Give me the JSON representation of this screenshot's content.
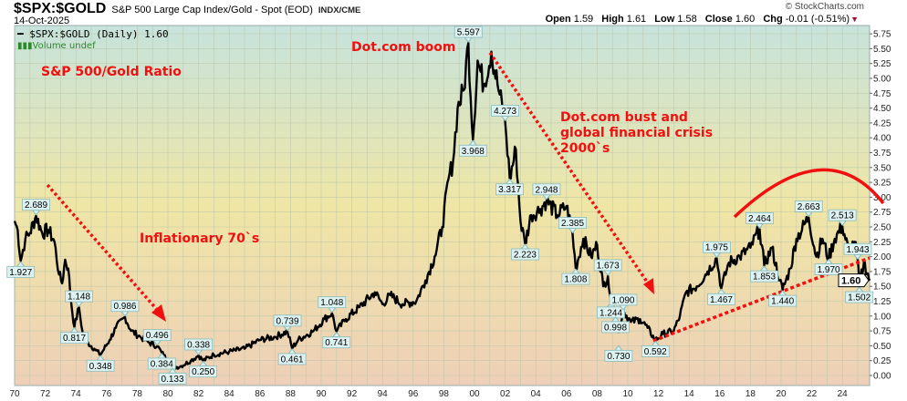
{
  "header": {
    "symbol": "$SPX:$GOLD",
    "description": "S&P 500 Large Cap Index/Gold - Spot (EOD)",
    "exchange": "INDX/CME",
    "date": "14-Oct-2025",
    "copyright": "© StockCharts.com",
    "open_label": "Open",
    "open": "1.59",
    "high_label": "High",
    "high": "1.61",
    "low_label": "Low",
    "low": "1.58",
    "close_label": "Close",
    "close": "1.60",
    "chg_label": "Chg",
    "chg": "-0.01 (-0.51%)",
    "chg_direction": "down"
  },
  "legend": {
    "series": "$SPX:$GOLD (Daily) 1.60",
    "volume": "Volume undef"
  },
  "colors": {
    "line": "#000000",
    "annotation": "#f01010",
    "label_box": "#dff2f2",
    "bg_top": "#c7e3dc",
    "bg_mid": "#efe6a6",
    "bg_bottom": "#eed0b8"
  },
  "chart_data": {
    "type": "line",
    "title": "",
    "xlabel": "",
    "ylabel": "",
    "xlim": [
      1970,
      2025.8
    ],
    "ylim": [
      -0.25,
      6.0
    ],
    "grid": true,
    "x_ticks": [
      "70",
      "72",
      "74",
      "76",
      "78",
      "80",
      "82",
      "84",
      "86",
      "88",
      "90",
      "92",
      "94",
      "96",
      "98",
      "00",
      "02",
      "04",
      "06",
      "08",
      "10",
      "12",
      "14",
      "16",
      "18",
      "20",
      "22",
      "24"
    ],
    "y_ticks": [
      "0.00",
      "0.25",
      "0.50",
      "0.75",
      "1.00",
      "1.25",
      "1.50",
      "1.75",
      "2.00",
      "2.25",
      "2.50",
      "2.75",
      "3.00",
      "3.25",
      "3.50",
      "3.75",
      "4.00",
      "4.25",
      "4.50",
      "4.75",
      "5.00",
      "5.25",
      "5.50",
      "5.75"
    ],
    "last_value": "1.60",
    "series": [
      {
        "points": [
          [
            1970,
            2.6
          ],
          [
            1970.2,
            2.45
          ],
          [
            1970.4,
            1.927
          ],
          [
            1970.7,
            2.3
          ],
          [
            1971,
            2.4
          ],
          [
            1971.4,
            2.689
          ],
          [
            1971.8,
            2.4
          ],
          [
            1972.2,
            2.45
          ],
          [
            1972.6,
            2.25
          ],
          [
            1972.9,
            1.7
          ],
          [
            1973.1,
            1.55
          ],
          [
            1973.3,
            1.95
          ],
          [
            1973.5,
            1.8
          ],
          [
            1973.7,
            1.2
          ],
          [
            1973.9,
            0.817
          ],
          [
            1974.2,
            1.148
          ],
          [
            1974.5,
            0.6
          ],
          [
            1974.8,
            0.55
          ],
          [
            1975.2,
            0.45
          ],
          [
            1975.6,
            0.348
          ],
          [
            1976.2,
            0.6
          ],
          [
            1976.6,
            0.8
          ],
          [
            1977.2,
            0.986
          ],
          [
            1977.6,
            0.75
          ],
          [
            1978.2,
            0.65
          ],
          [
            1978.8,
            0.55
          ],
          [
            1979.3,
            0.496
          ],
          [
            1979.6,
            0.384
          ],
          [
            1980,
            0.25
          ],
          [
            1980.3,
            0.133
          ],
          [
            1980.8,
            0.15
          ],
          [
            1981.5,
            0.25
          ],
          [
            1982,
            0.338
          ],
          [
            1982.3,
            0.25
          ],
          [
            1983,
            0.35
          ],
          [
            1984,
            0.4
          ],
          [
            1985,
            0.45
          ],
          [
            1986,
            0.6
          ],
          [
            1987,
            0.65
          ],
          [
            1987.8,
            0.739
          ],
          [
            1988.1,
            0.461
          ],
          [
            1988.5,
            0.6
          ],
          [
            1989.5,
            0.75
          ],
          [
            1990.2,
            0.95
          ],
          [
            1990.7,
            1.048
          ],
          [
            1991,
            0.741
          ],
          [
            1991.6,
            0.95
          ],
          [
            1992.5,
            1.15
          ],
          [
            1993.5,
            1.4
          ],
          [
            1994,
            1.2
          ],
          [
            1994.5,
            1.35
          ],
          [
            1995.3,
            1.2
          ],
          [
            1996.2,
            1.25
          ],
          [
            1996.8,
            1.6
          ],
          [
            1997.4,
            2.0
          ],
          [
            1997.9,
            2.5
          ],
          [
            1998.3,
            3.3
          ],
          [
            1998.6,
            3.6
          ],
          [
            1998.9,
            4.5
          ],
          [
            1999.3,
            4.8
          ],
          [
            1999.6,
            5.597
          ],
          [
            1999.9,
            3.968
          ],
          [
            2000.2,
            5.3
          ],
          [
            2000.6,
            4.9
          ],
          [
            2001.1,
            5.45
          ],
          [
            2001.5,
            4.9
          ],
          [
            2002,
            4.273
          ],
          [
            2002.3,
            3.317
          ],
          [
            2002.7,
            3.8
          ],
          [
            2003,
            2.6
          ],
          [
            2003.3,
            2.223
          ],
          [
            2003.7,
            2.7
          ],
          [
            2004.3,
            2.8
          ],
          [
            2004.7,
            2.948
          ],
          [
            2005.4,
            2.7
          ],
          [
            2006,
            2.85
          ],
          [
            2006.4,
            2.385
          ],
          [
            2006.6,
            1.808
          ],
          [
            2007.1,
            2.3
          ],
          [
            2007.6,
            2.0
          ],
          [
            2008,
            2.2
          ],
          [
            2008.4,
            1.5
          ],
          [
            2008.7,
            1.673
          ],
          [
            2008.9,
            1.244
          ],
          [
            2009.2,
            0.998
          ],
          [
            2009.4,
            0.73
          ],
          [
            2009.7,
            1.09
          ],
          [
            2010.2,
            0.9
          ],
          [
            2010.8,
            0.95
          ],
          [
            2011.3,
            0.8
          ],
          [
            2011.8,
            0.592
          ],
          [
            2012.3,
            0.7
          ],
          [
            2013,
            0.75
          ],
          [
            2013.4,
            1.0
          ],
          [
            2013.8,
            1.4
          ],
          [
            2014.5,
            1.5
          ],
          [
            2015.2,
            1.75
          ],
          [
            2015.8,
            1.975
          ],
          [
            2016.1,
            1.467
          ],
          [
            2016.6,
            1.9
          ],
          [
            2017.3,
            2.0
          ],
          [
            2018,
            2.15
          ],
          [
            2018.6,
            2.464
          ],
          [
            2018.9,
            1.853
          ],
          [
            2019.4,
            2.15
          ],
          [
            2019.9,
            1.6
          ],
          [
            2020.1,
            1.44
          ],
          [
            2020.6,
            1.8
          ],
          [
            2021,
            2.3
          ],
          [
            2021.8,
            2.663
          ],
          [
            2022.3,
            2.0
          ],
          [
            2022.7,
            2.3
          ],
          [
            2023.1,
            1.97
          ],
          [
            2023.5,
            2.3
          ],
          [
            2024,
            2.513
          ],
          [
            2024.4,
            2.1
          ],
          [
            2024.8,
            2.25
          ],
          [
            2025,
            1.943
          ],
          [
            2025.1,
            1.502
          ],
          [
            2025.4,
            1.9
          ],
          [
            2025.8,
            1.6
          ]
        ]
      }
    ],
    "point_labels": [
      {
        "x": 1970.4,
        "y": 1.927,
        "text": "1.927",
        "pos": "below"
      },
      {
        "x": 1971.4,
        "y": 2.689,
        "text": "2.689",
        "pos": "above"
      },
      {
        "x": 1973.9,
        "y": 0.817,
        "text": "0.817",
        "pos": "below"
      },
      {
        "x": 1974.2,
        "y": 1.148,
        "text": "1.148",
        "pos": "above"
      },
      {
        "x": 1975.6,
        "y": 0.348,
        "text": "0.348",
        "pos": "below"
      },
      {
        "x": 1977.2,
        "y": 0.986,
        "text": "0.986",
        "pos": "above"
      },
      {
        "x": 1979.3,
        "y": 0.496,
        "text": "0.496",
        "pos": "above"
      },
      {
        "x": 1979.6,
        "y": 0.384,
        "text": "0.384",
        "pos": "below"
      },
      {
        "x": 1980.3,
        "y": 0.133,
        "text": "0.133",
        "pos": "below"
      },
      {
        "x": 1982,
        "y": 0.338,
        "text": "0.338",
        "pos": "above"
      },
      {
        "x": 1982.3,
        "y": 0.25,
        "text": "0.250",
        "pos": "below"
      },
      {
        "x": 1987.8,
        "y": 0.739,
        "text": "0.739",
        "pos": "above"
      },
      {
        "x": 1988.1,
        "y": 0.461,
        "text": "0.461",
        "pos": "below"
      },
      {
        "x": 1990.7,
        "y": 1.048,
        "text": "1.048",
        "pos": "above"
      },
      {
        "x": 1991,
        "y": 0.741,
        "text": "0.741",
        "pos": "below"
      },
      {
        "x": 1999.6,
        "y": 5.597,
        "text": "5.597",
        "pos": "above"
      },
      {
        "x": 1999.9,
        "y": 3.968,
        "text": "3.968",
        "pos": "below"
      },
      {
        "x": 2002,
        "y": 4.273,
        "text": "4.273",
        "pos": "above"
      },
      {
        "x": 2002.3,
        "y": 3.317,
        "text": "3.317",
        "pos": "below"
      },
      {
        "x": 2003.3,
        "y": 2.223,
        "text": "2.223",
        "pos": "below"
      },
      {
        "x": 2004.7,
        "y": 2.948,
        "text": "2.948",
        "pos": "above"
      },
      {
        "x": 2006.4,
        "y": 2.385,
        "text": "2.385",
        "pos": "above"
      },
      {
        "x": 2006.6,
        "y": 1.808,
        "text": "1.808",
        "pos": "below"
      },
      {
        "x": 2008.7,
        "y": 1.673,
        "text": "1.673",
        "pos": "above"
      },
      {
        "x": 2008.9,
        "y": 1.244,
        "text": "1.244",
        "pos": "below"
      },
      {
        "x": 2009.7,
        "y": 1.09,
        "text": "1.090",
        "pos": "above"
      },
      {
        "x": 2009.2,
        "y": 0.998,
        "text": "0.998",
        "pos": "below"
      },
      {
        "x": 2009.4,
        "y": 0.73,
        "text": "0.730",
        "pos": "below2"
      },
      {
        "x": 2011.8,
        "y": 0.592,
        "text": "0.592",
        "pos": "below"
      },
      {
        "x": 2015.8,
        "y": 1.975,
        "text": "1.975",
        "pos": "above"
      },
      {
        "x": 2016.1,
        "y": 1.467,
        "text": "1.467",
        "pos": "below"
      },
      {
        "x": 2018.6,
        "y": 2.464,
        "text": "2.464",
        "pos": "above"
      },
      {
        "x": 2018.9,
        "y": 1.853,
        "text": "1.853",
        "pos": "below"
      },
      {
        "x": 2020.1,
        "y": 1.44,
        "text": "1.440",
        "pos": "below"
      },
      {
        "x": 2021.8,
        "y": 2.663,
        "text": "2.663",
        "pos": "above"
      },
      {
        "x": 2023.1,
        "y": 1.97,
        "text": "1.970",
        "pos": "below"
      },
      {
        "x": 2024,
        "y": 2.513,
        "text": "2.513",
        "pos": "above"
      },
      {
        "x": 2025,
        "y": 1.943,
        "text": "1.943",
        "pos": "above"
      },
      {
        "x": 2025.1,
        "y": 1.502,
        "text": "1.502",
        "pos": "below"
      }
    ],
    "annotations": {
      "ratio_title": "S&P 500/Gold Ratio",
      "boom": "Dot.com boom",
      "seventies": "Inflationary 70`s",
      "bust_line1": "Dot.com bust and",
      "bust_line2": "global financial crisis",
      "bust_line3": "2000`s"
    }
  }
}
